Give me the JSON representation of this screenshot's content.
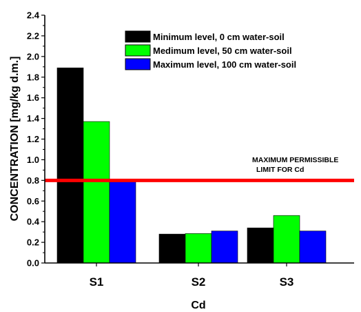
{
  "chart_data": {
    "type": "bar",
    "categories": [
      "S1",
      "S2",
      "S3"
    ],
    "series": [
      {
        "name": "Minimum level, 0 cm water-soil",
        "color": "#000000",
        "values": [
          1.89,
          0.28,
          0.34
        ]
      },
      {
        "name": "Medimum level, 50 cm water-soil",
        "color": "#00ff00",
        "values": [
          1.37,
          0.285,
          0.46
        ]
      },
      {
        "name": "Maximum level, 100 cm water-soil",
        "color": "#0000ff",
        "values": [
          0.785,
          0.31,
          0.31
        ]
      }
    ],
    "xlabel": "Cd",
    "ylabel": "CONCENTRATION [mg/kg d.m.]",
    "ylim": [
      0,
      2.4
    ],
    "yticks": [
      "0.0",
      "0.2",
      "0.4",
      "0.6",
      "0.8",
      "1.0",
      "1.2",
      "1.4",
      "1.6",
      "1.8",
      "2.0",
      "2.2",
      "2.4"
    ],
    "legend_position": "top-right",
    "grid": false,
    "reference_line": {
      "value": 0.8,
      "color": "#ff0000",
      "label_line1": "MAXIMUM PERMISSIBLE",
      "label_line2": "LIMIT FOR Cd"
    }
  }
}
